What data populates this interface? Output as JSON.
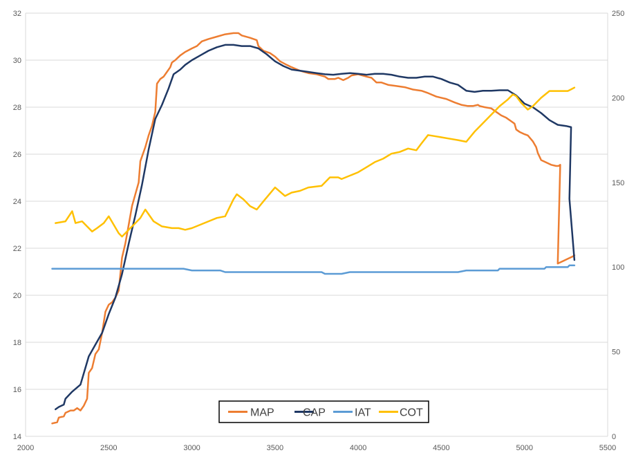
{
  "chart_data": {
    "type": "line",
    "xlim": [
      2000,
      5500
    ],
    "ylim_left": [
      14,
      32
    ],
    "ylim_right": [
      0,
      250
    ],
    "x_ticks": [
      2000,
      2500,
      3000,
      3500,
      4000,
      4500,
      5000,
      5500
    ],
    "y_left_ticks": [
      14,
      16,
      18,
      20,
      22,
      24,
      26,
      28,
      30,
      32
    ],
    "y_right_ticks": [
      0,
      50,
      100,
      150,
      200,
      250
    ],
    "x_tick_labels": [
      "2000",
      "2500",
      "3000",
      "3500",
      "4000",
      "4500",
      "5000",
      "5500"
    ],
    "y_left_tick_labels": [
      "14",
      "16",
      "18",
      "20",
      "22",
      "24",
      "26",
      "28",
      "30",
      "32"
    ],
    "y_right_tick_labels": [
      "0",
      "50",
      "100",
      "150",
      "200",
      "250"
    ],
    "grid": "horizontal",
    "legend_position": "bottom-center",
    "series": [
      {
        "name": "MAP",
        "axis": "left",
        "color": "#ED7D31",
        "points": [
          [
            2160,
            14.55
          ],
          [
            2190,
            14.6
          ],
          [
            2200,
            14.8
          ],
          [
            2230,
            14.85
          ],
          [
            2240,
            15.0
          ],
          [
            2270,
            15.1
          ],
          [
            2290,
            15.1
          ],
          [
            2310,
            15.2
          ],
          [
            2330,
            15.1
          ],
          [
            2350,
            15.3
          ],
          [
            2370,
            15.6
          ],
          [
            2380,
            16.7
          ],
          [
            2400,
            16.9
          ],
          [
            2420,
            17.5
          ],
          [
            2440,
            17.7
          ],
          [
            2460,
            18.4
          ],
          [
            2480,
            19.3
          ],
          [
            2500,
            19.6
          ],
          [
            2520,
            19.7
          ],
          [
            2540,
            19.9
          ],
          [
            2560,
            20.2
          ],
          [
            2580,
            21.6
          ],
          [
            2600,
            22.2
          ],
          [
            2620,
            23.0
          ],
          [
            2640,
            23.8
          ],
          [
            2660,
            24.3
          ],
          [
            2680,
            24.8
          ],
          [
            2690,
            25.7
          ],
          [
            2720,
            26.3
          ],
          [
            2740,
            26.8
          ],
          [
            2760,
            27.2
          ],
          [
            2780,
            27.8
          ],
          [
            2790,
            29.0
          ],
          [
            2810,
            29.2
          ],
          [
            2830,
            29.3
          ],
          [
            2850,
            29.5
          ],
          [
            2870,
            29.7
          ],
          [
            2880,
            29.9
          ],
          [
            2900,
            30.0
          ],
          [
            2930,
            30.2
          ],
          [
            2960,
            30.35
          ],
          [
            3000,
            30.5
          ],
          [
            3030,
            30.6
          ],
          [
            3060,
            30.8
          ],
          [
            3100,
            30.9
          ],
          [
            3150,
            31.0
          ],
          [
            3200,
            31.1
          ],
          [
            3250,
            31.15
          ],
          [
            3280,
            31.15
          ],
          [
            3300,
            31.05
          ],
          [
            3350,
            30.95
          ],
          [
            3390,
            30.85
          ],
          [
            3400,
            30.6
          ],
          [
            3430,
            30.4
          ],
          [
            3470,
            30.3
          ],
          [
            3500,
            30.15
          ],
          [
            3530,
            29.95
          ],
          [
            3570,
            29.8
          ],
          [
            3600,
            29.7
          ],
          [
            3650,
            29.55
          ],
          [
            3700,
            29.45
          ],
          [
            3750,
            29.4
          ],
          [
            3800,
            29.3
          ],
          [
            3820,
            29.2
          ],
          [
            3860,
            29.2
          ],
          [
            3880,
            29.25
          ],
          [
            3910,
            29.15
          ],
          [
            3940,
            29.25
          ],
          [
            3960,
            29.35
          ],
          [
            4000,
            29.4
          ],
          [
            4050,
            29.3
          ],
          [
            4080,
            29.25
          ],
          [
            4110,
            29.05
          ],
          [
            4140,
            29.05
          ],
          [
            4180,
            28.95
          ],
          [
            4230,
            28.9
          ],
          [
            4280,
            28.85
          ],
          [
            4330,
            28.75
          ],
          [
            4380,
            28.7
          ],
          [
            4420,
            28.6
          ],
          [
            4470,
            28.45
          ],
          [
            4530,
            28.35
          ],
          [
            4580,
            28.2
          ],
          [
            4620,
            28.1
          ],
          [
            4660,
            28.05
          ],
          [
            4690,
            28.05
          ],
          [
            4720,
            28.1
          ],
          [
            4730,
            28.05
          ],
          [
            4760,
            28.0
          ],
          [
            4800,
            27.95
          ],
          [
            4830,
            27.8
          ],
          [
            4860,
            27.65
          ],
          [
            4890,
            27.55
          ],
          [
            4920,
            27.4
          ],
          [
            4940,
            27.3
          ],
          [
            4950,
            27.05
          ],
          [
            4970,
            26.95
          ],
          [
            5000,
            26.85
          ],
          [
            5020,
            26.8
          ],
          [
            5050,
            26.55
          ],
          [
            5070,
            26.3
          ],
          [
            5080,
            26.05
          ],
          [
            5100,
            25.75
          ],
          [
            5130,
            25.65
          ],
          [
            5160,
            25.55
          ],
          [
            5190,
            25.5
          ],
          [
            5205,
            25.5
          ],
          [
            5215,
            25.55
          ],
          [
            5200,
            21.35
          ],
          [
            5230,
            21.45
          ],
          [
            5260,
            21.55
          ],
          [
            5290,
            21.65
          ],
          [
            5300,
            21.7
          ]
        ]
      },
      {
        "name": "CAP",
        "axis": "left",
        "color": "#1F3864",
        "points": [
          [
            2180,
            15.15
          ],
          [
            2200,
            15.25
          ],
          [
            2230,
            15.35
          ],
          [
            2240,
            15.6
          ],
          [
            2280,
            15.9
          ],
          [
            2330,
            16.2
          ],
          [
            2380,
            17.4
          ],
          [
            2420,
            17.9
          ],
          [
            2460,
            18.4
          ],
          [
            2500,
            19.2
          ],
          [
            2540,
            19.9
          ],
          [
            2580,
            20.9
          ],
          [
            2620,
            22.2
          ],
          [
            2660,
            23.4
          ],
          [
            2700,
            24.7
          ],
          [
            2740,
            26.2
          ],
          [
            2780,
            27.5
          ],
          [
            2820,
            28.1
          ],
          [
            2860,
            28.8
          ],
          [
            2890,
            29.4
          ],
          [
            2930,
            29.6
          ],
          [
            2960,
            29.8
          ],
          [
            3000,
            30.0
          ],
          [
            3050,
            30.2
          ],
          [
            3100,
            30.4
          ],
          [
            3150,
            30.55
          ],
          [
            3200,
            30.65
          ],
          [
            3250,
            30.65
          ],
          [
            3300,
            30.6
          ],
          [
            3350,
            30.6
          ],
          [
            3400,
            30.5
          ],
          [
            3450,
            30.25
          ],
          [
            3500,
            29.95
          ],
          [
            3550,
            29.75
          ],
          [
            3600,
            29.6
          ],
          [
            3650,
            29.55
          ],
          [
            3700,
            29.5
          ],
          [
            3750,
            29.45
          ],
          [
            3800,
            29.4
          ],
          [
            3850,
            29.38
          ],
          [
            3900,
            29.42
          ],
          [
            3950,
            29.45
          ],
          [
            4000,
            29.42
          ],
          [
            4050,
            29.38
          ],
          [
            4100,
            29.42
          ],
          [
            4150,
            29.42
          ],
          [
            4200,
            29.38
          ],
          [
            4250,
            29.3
          ],
          [
            4300,
            29.25
          ],
          [
            4350,
            29.25
          ],
          [
            4400,
            29.3
          ],
          [
            4450,
            29.3
          ],
          [
            4500,
            29.2
          ],
          [
            4550,
            29.05
          ],
          [
            4600,
            28.95
          ],
          [
            4650,
            28.7
          ],
          [
            4700,
            28.65
          ],
          [
            4750,
            28.7
          ],
          [
            4800,
            28.7
          ],
          [
            4850,
            28.72
          ],
          [
            4900,
            28.72
          ],
          [
            4950,
            28.5
          ],
          [
            5000,
            28.15
          ],
          [
            5050,
            28.0
          ],
          [
            5100,
            27.75
          ],
          [
            5150,
            27.45
          ],
          [
            5200,
            27.25
          ],
          [
            5250,
            27.2
          ],
          [
            5280,
            27.15
          ],
          [
            5270,
            24.1
          ],
          [
            5300,
            21.5
          ]
        ]
      },
      {
        "name": "IAT",
        "axis": "right",
        "color": "#5B9BD5",
        "points": [
          [
            2160,
            99
          ],
          [
            2950,
            99
          ],
          [
            3000,
            98
          ],
          [
            3170,
            98
          ],
          [
            3200,
            97
          ],
          [
            3780,
            97
          ],
          [
            3800,
            96
          ],
          [
            3900,
            96
          ],
          [
            3950,
            97
          ],
          [
            4600,
            97
          ],
          [
            4650,
            98
          ],
          [
            4840,
            98
          ],
          [
            4850,
            99
          ],
          [
            5120,
            99
          ],
          [
            5130,
            100
          ],
          [
            5260,
            100
          ],
          [
            5270,
            101
          ],
          [
            5300,
            101
          ]
        ]
      },
      {
        "name": "COT",
        "axis": "right",
        "color": "#FFC000",
        "points": [
          [
            2180,
            126
          ],
          [
            2240,
            127
          ],
          [
            2280,
            133
          ],
          [
            2300,
            126
          ],
          [
            2340,
            127
          ],
          [
            2360,
            125
          ],
          [
            2400,
            121
          ],
          [
            2430,
            123
          ],
          [
            2470,
            126
          ],
          [
            2500,
            130
          ],
          [
            2530,
            125
          ],
          [
            2560,
            120
          ],
          [
            2580,
            118
          ],
          [
            2620,
            122
          ],
          [
            2660,
            126
          ],
          [
            2690,
            129
          ],
          [
            2720,
            134
          ],
          [
            2770,
            127
          ],
          [
            2820,
            124
          ],
          [
            2880,
            123
          ],
          [
            2920,
            123
          ],
          [
            2960,
            122
          ],
          [
            3000,
            123
          ],
          [
            3050,
            125
          ],
          [
            3100,
            127
          ],
          [
            3150,
            129
          ],
          [
            3200,
            130
          ],
          [
            3250,
            140
          ],
          [
            3270,
            143
          ],
          [
            3310,
            140
          ],
          [
            3350,
            136
          ],
          [
            3390,
            134
          ],
          [
            3440,
            140
          ],
          [
            3500,
            147
          ],
          [
            3560,
            142
          ],
          [
            3600,
            144
          ],
          [
            3650,
            145
          ],
          [
            3700,
            147
          ],
          [
            3780,
            148
          ],
          [
            3830,
            153
          ],
          [
            3880,
            153
          ],
          [
            3900,
            152
          ],
          [
            3950,
            154
          ],
          [
            4000,
            156
          ],
          [
            4050,
            159
          ],
          [
            4100,
            162
          ],
          [
            4150,
            164
          ],
          [
            4200,
            167
          ],
          [
            4250,
            168
          ],
          [
            4300,
            170
          ],
          [
            4350,
            169
          ],
          [
            4380,
            173
          ],
          [
            4420,
            178
          ],
          [
            4480,
            177
          ],
          [
            4540,
            176
          ],
          [
            4600,
            175
          ],
          [
            4650,
            174
          ],
          [
            4700,
            180
          ],
          [
            4750,
            185
          ],
          [
            4800,
            190
          ],
          [
            4850,
            195
          ],
          [
            4900,
            199
          ],
          [
            4930,
            202
          ],
          [
            4950,
            201
          ],
          [
            4980,
            197
          ],
          [
            5020,
            193
          ],
          [
            5050,
            195
          ],
          [
            5100,
            200
          ],
          [
            5150,
            204
          ],
          [
            5180,
            204
          ],
          [
            5220,
            204
          ],
          [
            5260,
            204
          ],
          [
            5280,
            205
          ],
          [
            5300,
            206
          ]
        ]
      }
    ]
  }
}
